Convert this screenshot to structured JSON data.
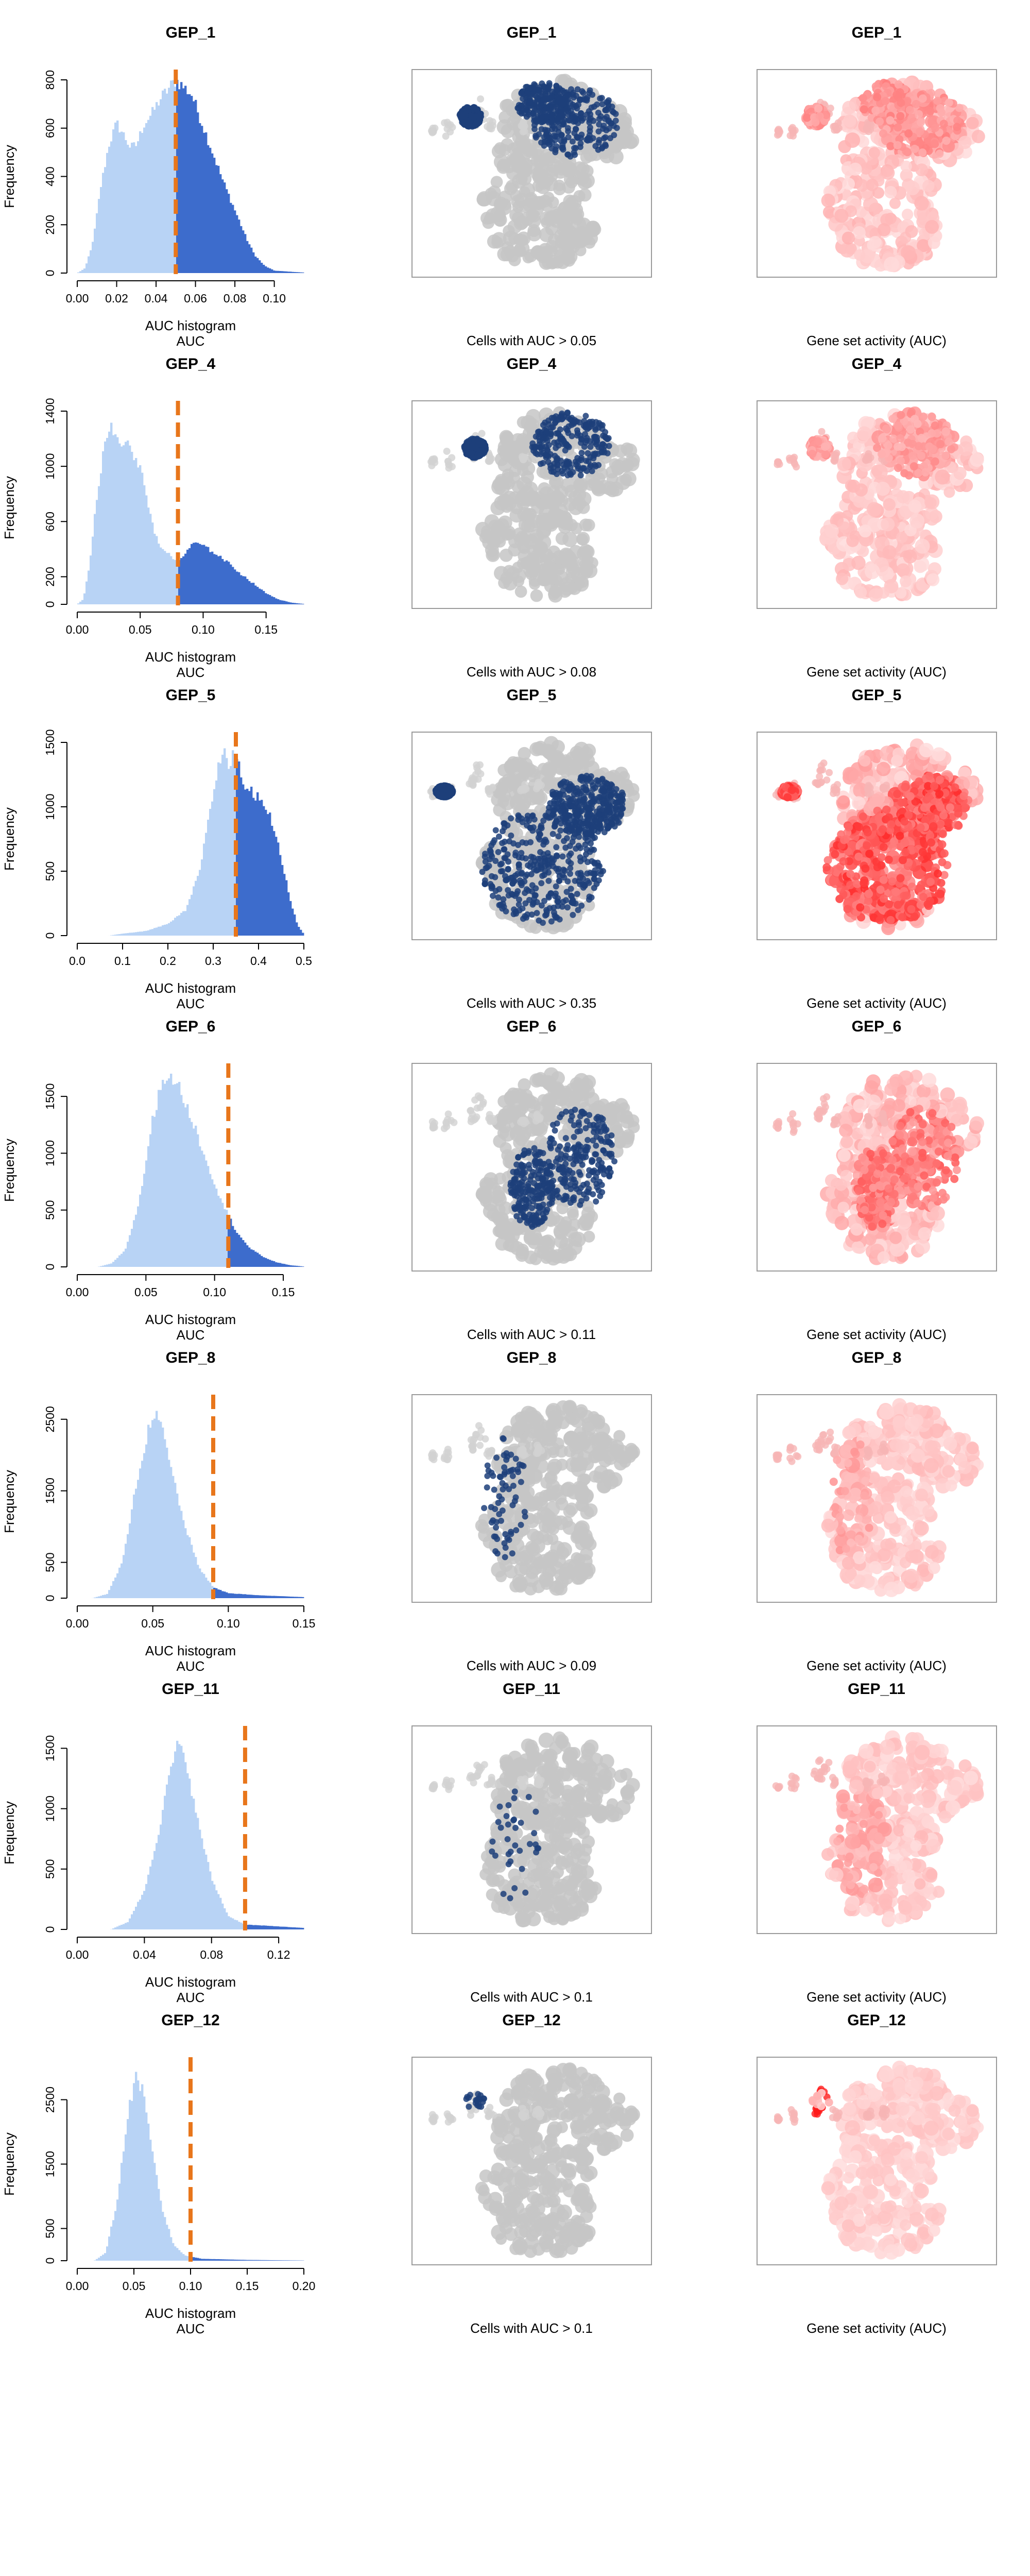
{
  "colors": {
    "hist_below": "#b8d3f5",
    "hist_above": "#3d6ccc",
    "threshold_line": "#e8761b",
    "cells_selected": "#1d3f7a",
    "cells_background": "#c6c6c6",
    "auc_red": "#ff1a1a"
  },
  "chart_data": [
    {
      "type": "bar",
      "title": "GEP_1",
      "xlabel": "AUC histogram",
      "xlabel2": "AUC",
      "ylabel": "Frequency",
      "xlim": [
        0,
        0.115
      ],
      "ylim": [
        0,
        800
      ],
      "xticks": [
        "0.00",
        "0.02",
        "0.04",
        "0.06",
        "0.08",
        "0.10"
      ],
      "xtick_vals": [
        0,
        0.02,
        0.04,
        0.06,
        0.08,
        0.1
      ],
      "yticks": [
        "0",
        "200",
        "400",
        "600",
        "800"
      ],
      "ytick_vals": [
        0,
        200,
        400,
        600,
        800
      ],
      "threshold": 0.05,
      "profile": [
        [
          0,
          0
        ],
        [
          0.004,
          20
        ],
        [
          0.008,
          130
        ],
        [
          0.012,
          360
        ],
        [
          0.016,
          530
        ],
        [
          0.02,
          620
        ],
        [
          0.023,
          580
        ],
        [
          0.027,
          520
        ],
        [
          0.03,
          530
        ],
        [
          0.034,
          620
        ],
        [
          0.038,
          660
        ],
        [
          0.042,
          720
        ],
        [
          0.046,
          760
        ],
        [
          0.05,
          800
        ],
        [
          0.054,
          770
        ],
        [
          0.058,
          740
        ],
        [
          0.062,
          650
        ],
        [
          0.066,
          560
        ],
        [
          0.07,
          470
        ],
        [
          0.074,
          380
        ],
        [
          0.078,
          300
        ],
        [
          0.082,
          220
        ],
        [
          0.086,
          140
        ],
        [
          0.09,
          75
        ],
        [
          0.095,
          30
        ],
        [
          0.1,
          10
        ],
        [
          0.115,
          2
        ]
      ],
      "scatter_title": "GEP_1",
      "scatter_caption": "Cells with AUC > 0.05",
      "activity_title": "GEP_1",
      "activity_caption": "Gene set activity (AUC)"
    },
    {
      "type": "bar",
      "title": "GEP_4",
      "xlabel": "AUC histogram",
      "xlabel2": "AUC",
      "ylabel": "Frequency",
      "xlim": [
        0,
        0.18
      ],
      "ylim": [
        0,
        1400
      ],
      "xticks": [
        "0.00",
        "0.05",
        "0.10",
        "0.15"
      ],
      "xtick_vals": [
        0,
        0.05,
        0.1,
        0.15
      ],
      "yticks": [
        "0",
        "200",
        "600",
        "1000",
        "1400"
      ],
      "ytick_vals": [
        0,
        200,
        600,
        1000,
        1400
      ],
      "threshold": 0.08,
      "profile": [
        [
          0,
          0
        ],
        [
          0.005,
          40
        ],
        [
          0.01,
          300
        ],
        [
          0.015,
          750
        ],
        [
          0.02,
          1050
        ],
        [
          0.025,
          1300
        ],
        [
          0.03,
          1250
        ],
        [
          0.035,
          1150
        ],
        [
          0.04,
          1200
        ],
        [
          0.045,
          1060
        ],
        [
          0.05,
          980
        ],
        [
          0.055,
          800
        ],
        [
          0.06,
          560
        ],
        [
          0.065,
          420
        ],
        [
          0.07,
          400
        ],
        [
          0.075,
          330
        ],
        [
          0.08,
          310
        ],
        [
          0.085,
          360
        ],
        [
          0.09,
          420
        ],
        [
          0.095,
          450
        ],
        [
          0.1,
          420
        ],
        [
          0.11,
          370
        ],
        [
          0.12,
          300
        ],
        [
          0.13,
          220
        ],
        [
          0.14,
          150
        ],
        [
          0.15,
          80
        ],
        [
          0.16,
          35
        ],
        [
          0.17,
          12
        ],
        [
          0.18,
          3
        ]
      ],
      "scatter_title": "GEP_4",
      "scatter_caption": "Cells with AUC > 0.08",
      "activity_title": "GEP_4",
      "activity_caption": "Gene set activity (AUC)"
    },
    {
      "type": "bar",
      "title": "GEP_5",
      "xlabel": "AUC histogram",
      "xlabel2": "AUC",
      "ylabel": "Frequency",
      "xlim": [
        0,
        0.5
      ],
      "ylim": [
        0,
        1500
      ],
      "xticks": [
        "0.0",
        "0.1",
        "0.2",
        "0.3",
        "0.4",
        "0.5"
      ],
      "xtick_vals": [
        0,
        0.1,
        0.2,
        0.3,
        0.4,
        0.5
      ],
      "yticks": [
        "0",
        "500",
        "1000",
        "1500"
      ],
      "ytick_vals": [
        0,
        500,
        1000,
        1500
      ],
      "threshold": 0.35,
      "profile": [
        [
          0.07,
          0
        ],
        [
          0.1,
          15
        ],
        [
          0.15,
          35
        ],
        [
          0.2,
          90
        ],
        [
          0.24,
          200
        ],
        [
          0.27,
          500
        ],
        [
          0.29,
          900
        ],
        [
          0.31,
          1300
        ],
        [
          0.325,
          1450
        ],
        [
          0.335,
          1300
        ],
        [
          0.345,
          1450
        ],
        [
          0.355,
          1330
        ],
        [
          0.37,
          1150
        ],
        [
          0.39,
          1100
        ],
        [
          0.41,
          1050
        ],
        [
          0.43,
          880
        ],
        [
          0.45,
          600
        ],
        [
          0.47,
          280
        ],
        [
          0.485,
          90
        ],
        [
          0.5,
          10
        ]
      ],
      "scatter_title": "GEP_5",
      "scatter_caption": "Cells with AUC > 0.35",
      "activity_title": "GEP_5",
      "activity_caption": "Gene set activity (AUC)"
    },
    {
      "type": "bar",
      "title": "GEP_6",
      "xlabel": "AUC histogram",
      "xlabel2": "AUC",
      "ylabel": "Frequency",
      "xlim": [
        0,
        0.165
      ],
      "ylim": [
        0,
        1700
      ],
      "xticks": [
        "0.00",
        "0.05",
        "0.10",
        "0.15"
      ],
      "xtick_vals": [
        0,
        0.05,
        0.1,
        0.15
      ],
      "yticks": [
        "0",
        "500",
        "1000",
        "1500"
      ],
      "ytick_vals": [
        0,
        500,
        1000,
        1500
      ],
      "threshold": 0.11,
      "profile": [
        [
          0.015,
          0
        ],
        [
          0.025,
          30
        ],
        [
          0.035,
          150
        ],
        [
          0.045,
          560
        ],
        [
          0.055,
          1300
        ],
        [
          0.062,
          1650
        ],
        [
          0.068,
          1700
        ],
        [
          0.075,
          1550
        ],
        [
          0.085,
          1250
        ],
        [
          0.095,
          900
        ],
        [
          0.105,
          580
        ],
        [
          0.115,
          330
        ],
        [
          0.125,
          170
        ],
        [
          0.135,
          90
        ],
        [
          0.145,
          40
        ],
        [
          0.155,
          15
        ],
        [
          0.165,
          3
        ]
      ],
      "scatter_title": "GEP_6",
      "scatter_caption": "Cells with AUC > 0.11",
      "activity_title": "GEP_6",
      "activity_caption": "Gene set activity (AUC)"
    },
    {
      "type": "bar",
      "title": "GEP_8",
      "xlabel": "AUC histogram",
      "xlabel2": "AUC",
      "ylabel": "Frequency",
      "xlim": [
        0,
        0.15
      ],
      "ylim": [
        0,
        2700
      ],
      "xticks": [
        "0.00",
        "0.05",
        "0.10",
        "0.15"
      ],
      "xtick_vals": [
        0,
        0.05,
        0.1,
        0.15
      ],
      "yticks": [
        "0",
        "500",
        "1500",
        "2500"
      ],
      "ytick_vals": [
        0,
        500,
        1500,
        2500
      ],
      "threshold": 0.09,
      "profile": [
        [
          0.01,
          0
        ],
        [
          0.02,
          60
        ],
        [
          0.03,
          500
        ],
        [
          0.04,
          1700
        ],
        [
          0.05,
          2600
        ],
        [
          0.055,
          2450
        ],
        [
          0.06,
          2000
        ],
        [
          0.07,
          1100
        ],
        [
          0.08,
          450
        ],
        [
          0.09,
          150
        ],
        [
          0.1,
          70
        ],
        [
          0.12,
          40
        ],
        [
          0.15,
          15
        ]
      ],
      "scatter_title": "GEP_8",
      "scatter_caption": "Cells with AUC > 0.09",
      "activity_title": "GEP_8",
      "activity_caption": "Gene set activity (AUC)"
    },
    {
      "type": "bar",
      "title": "GEP_11",
      "xlabel": "AUC histogram",
      "xlabel2": "AUC",
      "ylabel": "Frequency",
      "xlim": [
        0,
        0.135
      ],
      "ylim": [
        0,
        1600
      ],
      "xticks": [
        "0.00",
        "0.04",
        "0.08",
        "0.12"
      ],
      "xtick_vals": [
        0,
        0.04,
        0.08,
        0.12
      ],
      "yticks": [
        "0",
        "500",
        "1000",
        "1500"
      ],
      "ytick_vals": [
        0,
        500,
        1000,
        1500
      ],
      "threshold": 0.1,
      "profile": [
        [
          0.02,
          0
        ],
        [
          0.03,
          60
        ],
        [
          0.04,
          320
        ],
        [
          0.05,
          900
        ],
        [
          0.055,
          1300
        ],
        [
          0.06,
          1530
        ],
        [
          0.065,
          1400
        ],
        [
          0.07,
          1000
        ],
        [
          0.08,
          420
        ],
        [
          0.09,
          110
        ],
        [
          0.1,
          40
        ],
        [
          0.12,
          25
        ],
        [
          0.135,
          12
        ]
      ],
      "scatter_title": "GEP_11",
      "scatter_caption": "Cells with AUC > 0.1",
      "activity_title": "GEP_11",
      "activity_caption": "Gene set activity (AUC)"
    },
    {
      "type": "bar",
      "title": "GEP_12",
      "xlabel": "AUC histogram",
      "xlabel2": "AUC",
      "ylabel": "Frequency",
      "xlim": [
        0,
        0.2
      ],
      "ylim": [
        0,
        3000
      ],
      "xticks": [
        "0.00",
        "0.05",
        "0.10",
        "0.15",
        "0.20"
      ],
      "xtick_vals": [
        0,
        0.05,
        0.1,
        0.15,
        0.2
      ],
      "yticks": [
        "0",
        "500",
        "1500",
        "2500"
      ],
      "ytick_vals": [
        0,
        500,
        1500,
        2500
      ],
      "threshold": 0.1,
      "profile": [
        [
          0.015,
          0
        ],
        [
          0.025,
          120
        ],
        [
          0.035,
          900
        ],
        [
          0.045,
          2300
        ],
        [
          0.052,
          2900
        ],
        [
          0.058,
          2600
        ],
        [
          0.065,
          1800
        ],
        [
          0.075,
          800
        ],
        [
          0.085,
          250
        ],
        [
          0.095,
          80
        ],
        [
          0.11,
          30
        ],
        [
          0.15,
          12
        ],
        [
          0.2,
          3
        ]
      ],
      "scatter_title": "GEP_12",
      "scatter_caption": "Cells with AUC > 0.1",
      "activity_title": "GEP_12",
      "activity_caption": "Gene set activity (AUC)"
    }
  ]
}
